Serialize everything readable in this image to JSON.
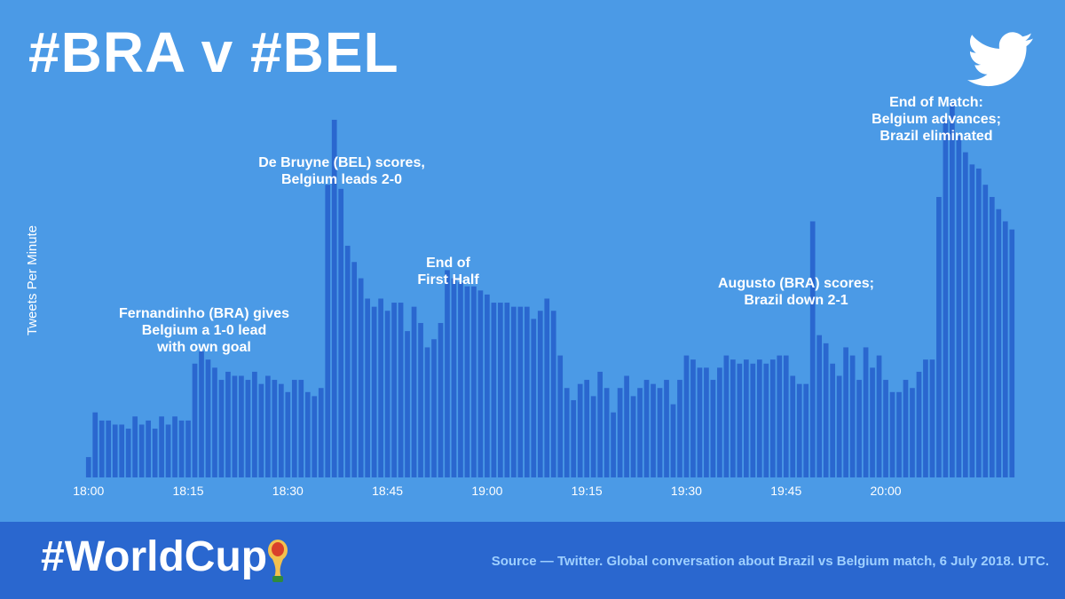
{
  "header": {
    "title": "#BRA v #BEL",
    "logo": "twitter-bird-icon"
  },
  "footer": {
    "hashtag": "#WorldCup",
    "trophy_icon": "world-cup-trophy-icon",
    "source": "Source — Twitter. Global conversation about Brazil vs Belgium match, 6 July 2018. UTC."
  },
  "colors": {
    "background": "#4b9ae6",
    "bar": "#2a67cf",
    "footer": "#2a67cf",
    "text": "#ffffff",
    "source_text": "#9fd0ff"
  },
  "chart_data": {
    "type": "bar",
    "title": "",
    "xlabel": "",
    "ylabel": "Tweets Per Minute",
    "start_time": "18:00",
    "interval_minutes": 1,
    "ylim": [
      0,
      100
    ],
    "grid": false,
    "x_ticks": [
      "18:00",
      "18:15",
      "18:30",
      "18:45",
      "19:00",
      "19:15",
      "19:30",
      "19:45",
      "20:00"
    ],
    "values": [
      5,
      16,
      14,
      14,
      13,
      13,
      12,
      15,
      13,
      14,
      12,
      15,
      13,
      15,
      14,
      14,
      28,
      31,
      29,
      27,
      24,
      26,
      25,
      25,
      24,
      26,
      23,
      25,
      24,
      23,
      21,
      24,
      24,
      21,
      20,
      22,
      72,
      88,
      71,
      57,
      53,
      49,
      44,
      42,
      44,
      41,
      43,
      43,
      36,
      42,
      38,
      32,
      34,
      38,
      51,
      49,
      48,
      47,
      47,
      46,
      45,
      43,
      43,
      43,
      42,
      42,
      42,
      39,
      41,
      44,
      41,
      30,
      22,
      19,
      23,
      24,
      20,
      26,
      22,
      16,
      22,
      25,
      20,
      22,
      24,
      23,
      22,
      24,
      18,
      24,
      30,
      29,
      27,
      27,
      24,
      27,
      30,
      29,
      28,
      29,
      28,
      29,
      28,
      29,
      30,
      30,
      25,
      23,
      23,
      63,
      35,
      33,
      28,
      25,
      32,
      30,
      24,
      32,
      27,
      30,
      24,
      21,
      21,
      24,
      22,
      26,
      29,
      29,
      69,
      88,
      92,
      84,
      80,
      77,
      76,
      72,
      69,
      66,
      63,
      61
    ]
  },
  "annotations": [
    {
      "lines": [
        "Fernandinho (BRA) gives",
        "Belgium a 1-0 lead",
        "with own goal"
      ]
    },
    {
      "lines": [
        "De Bruyne (BEL) scores,",
        "Belgium leads 2-0"
      ]
    },
    {
      "lines": [
        "End of",
        "First Half"
      ]
    },
    {
      "lines": [
        "Augusto (BRA) scores;",
        "Brazil down 2-1"
      ]
    },
    {
      "lines": [
        "End of Match:",
        "Belgium advances;",
        "Brazil eliminated"
      ]
    }
  ]
}
